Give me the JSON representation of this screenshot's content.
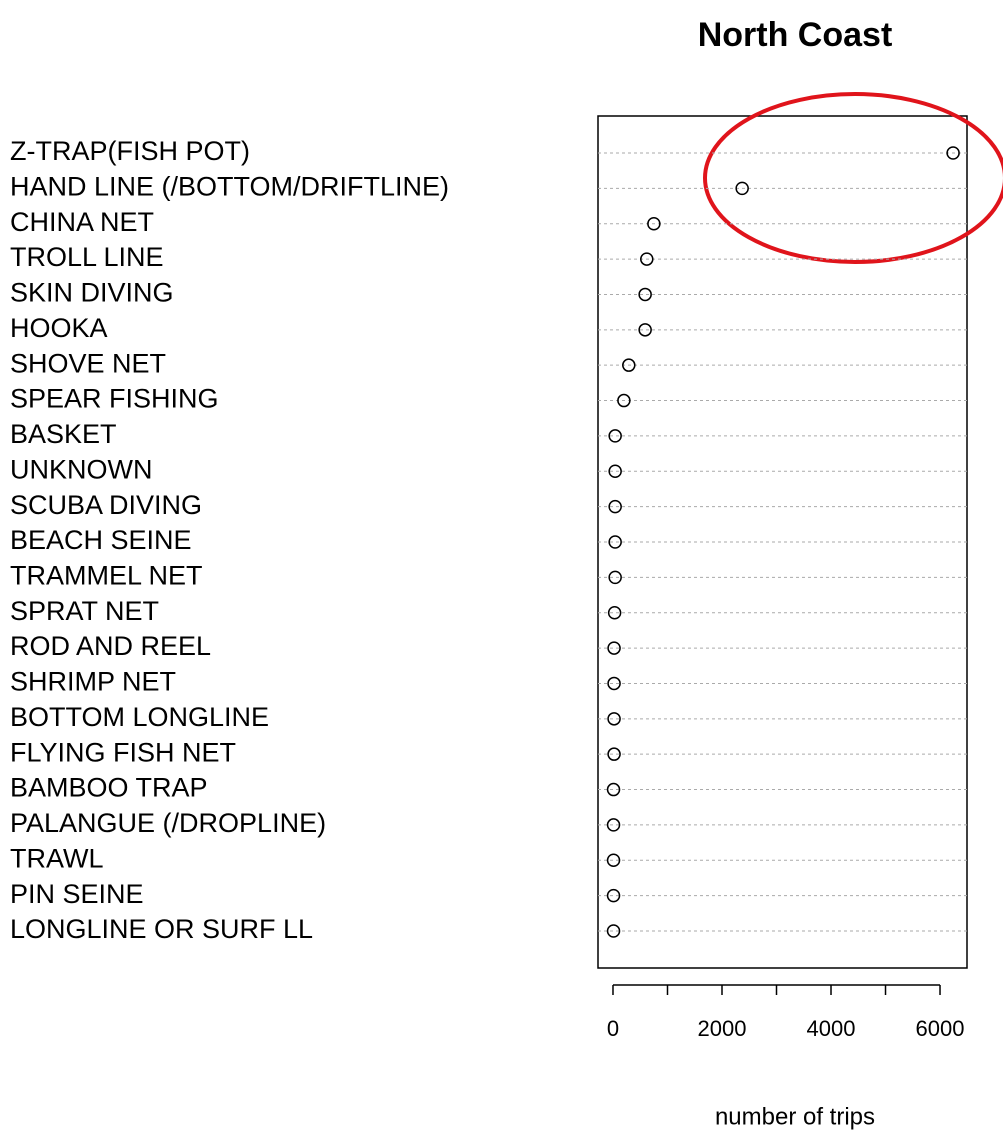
{
  "chart_data": {
    "type": "dotchart",
    "title": "North Coast",
    "x_label": "number of trips",
    "categories": [
      "Z-TRAP(FISH POT)",
      "HAND LINE (/BOTTOM/DRIFTLINE)",
      "CHINA NET",
      "TROLL LINE",
      "SKIN DIVING",
      "HOOKA",
      "SHOVE NET",
      "SPEAR FISHING",
      "BASKET",
      "UNKNOWN",
      "SCUBA DIVING",
      "BEACH SEINE",
      "TRAMMEL NET",
      "SPRAT NET",
      "ROD AND REEL",
      "SHRIMP NET",
      "BOTTOM LONGLINE",
      "FLYING FISH NET",
      "BAMBOO TRAP",
      "PALANGUE (/DROPLINE)",
      "TRAWL",
      "PIN SEINE",
      "LONGLINE OR SURF LL"
    ],
    "values": [
      6240,
      2370,
      750,
      620,
      590,
      590,
      290,
      200,
      40,
      40,
      40,
      40,
      40,
      30,
      20,
      20,
      20,
      20,
      10,
      10,
      10,
      10,
      10
    ],
    "color": "#000000",
    "xlim": [
      -275,
      6495
    ],
    "xticks": [
      0,
      2000,
      4000,
      6000
    ],
    "xticks_minor": [
      1000,
      3000,
      5000
    ],
    "grid": true
  }
}
